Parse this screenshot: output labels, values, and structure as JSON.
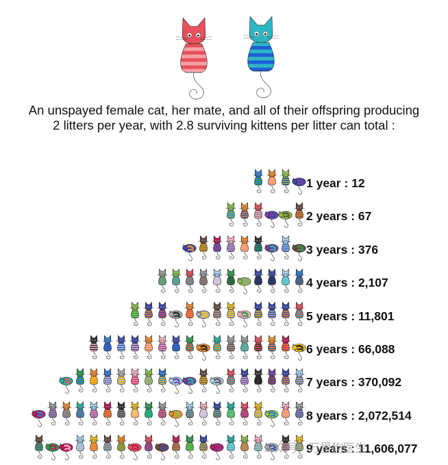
{
  "caption": {
    "line1": "An unspayed female cat, her mate, and all of their offspring producing",
    "line2": "2 litters per year, with 2.8 surviving kittens per litter can total :"
  },
  "parents": [
    {
      "name": "female-cat",
      "colors": [
        "#e8505b",
        "#f4a3a8"
      ]
    },
    {
      "name": "male-cat",
      "colors": [
        "#1d5fd6",
        "#2fb6c4"
      ]
    }
  ],
  "rows": [
    {
      "label": "1 year : 12",
      "years": 1,
      "total": 12
    },
    {
      "label": "2 years : 67",
      "years": 2,
      "total": 67
    },
    {
      "label": "3 years : 376",
      "years": 3,
      "total": 376
    },
    {
      "label": "4 years : 2,107",
      "years": 4,
      "total": 2107
    },
    {
      "label": "5 years : 11,801",
      "years": 5,
      "total": 11801
    },
    {
      "label": "6 years : 66,088",
      "years": 6,
      "total": 66088
    },
    {
      "label": "7 years : 370,092",
      "years": 7,
      "total": 370092
    },
    {
      "label": "8 years : 2,072,514",
      "years": 8,
      "total": 2072514
    },
    {
      "label": "9 years : 11,606,077",
      "years": 9,
      "total": 11606077
    }
  ],
  "watermark": "公众号 · 万里狗医生",
  "cat_palette": [
    "#e8505b",
    "#f28c28",
    "#f2c318",
    "#8bc34a",
    "#2e9e4f",
    "#1fb5a7",
    "#2b7bd6",
    "#3949ab",
    "#7b3fa0",
    "#c2185b",
    "#6d4c41",
    "#9e9e9e",
    "#333333",
    "#b0b0b0",
    "#ffb3c1",
    "#a5d6f7"
  ]
}
